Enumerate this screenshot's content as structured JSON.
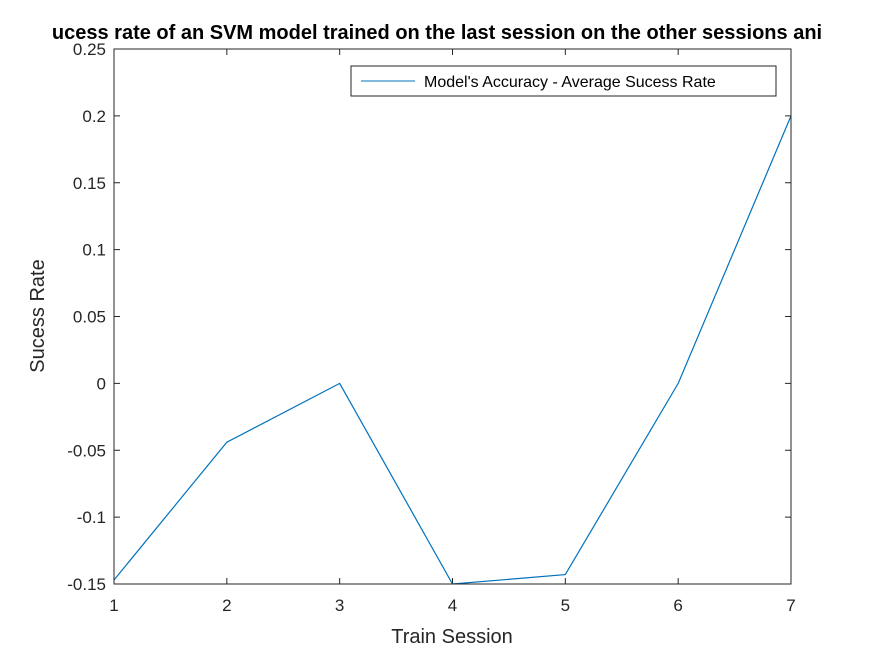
{
  "chart_data": {
    "type": "line",
    "title": "ucess rate of an SVM model trained on the last session on the other sessions ani",
    "xlabel": "Train Session",
    "ylabel": "Sucess Rate",
    "xlim": [
      1,
      7
    ],
    "ylim": [
      -0.15,
      0.25
    ],
    "xticks": [
      1,
      2,
      3,
      4,
      5,
      6,
      7
    ],
    "yticks": [
      "-0.15",
      "-0.1",
      "-0.05",
      "0",
      "0.05",
      "0.1",
      "0.15",
      "0.2",
      "0.25"
    ],
    "grid": false,
    "legend_position": "top-right",
    "series": [
      {
        "name": "Model's Accuracy - Average Sucess Rate",
        "color": "#0072BD",
        "x": [
          1,
          2,
          3,
          4,
          5,
          6,
          7
        ],
        "y": [
          -0.147,
          -0.044,
          0.0,
          -0.15,
          -0.143,
          0.0,
          0.2
        ]
      }
    ]
  }
}
